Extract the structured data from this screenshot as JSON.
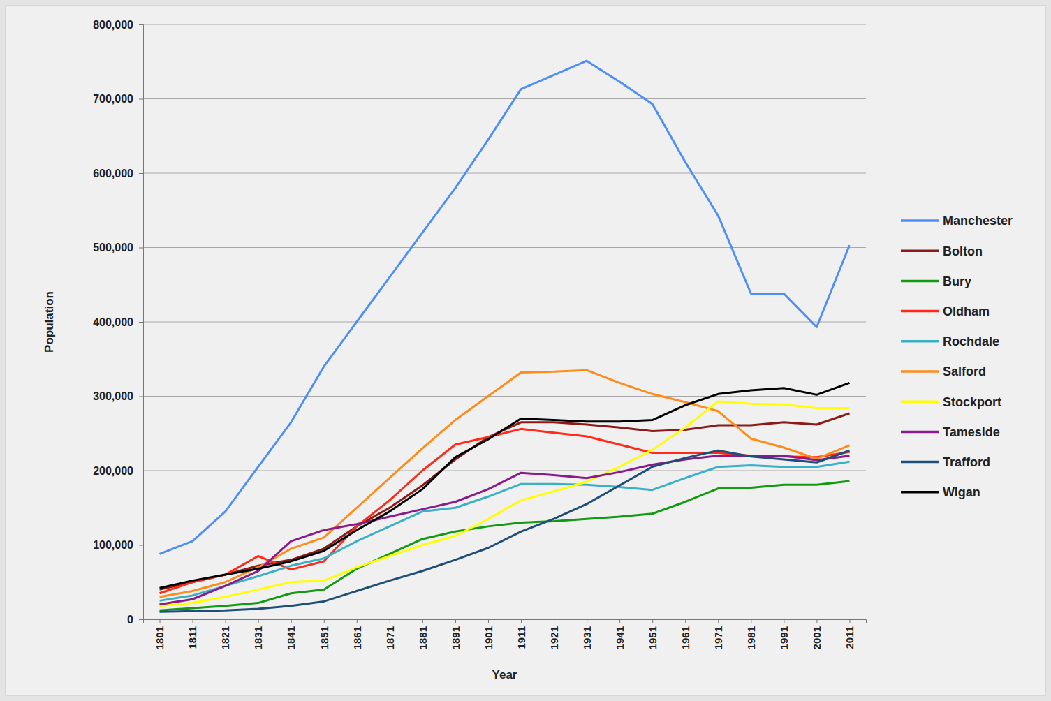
{
  "chart_data": {
    "type": "line",
    "x_label": "Year",
    "y_label": "Population",
    "categories": [
      "1801",
      "1811",
      "1821",
      "1831",
      "1841",
      "1851",
      "1861",
      "1871",
      "1881",
      "1891",
      "1901",
      "1911",
      "1921",
      "1931",
      "1941",
      "1951",
      "1961",
      "1971",
      "1981",
      "1991",
      "2001",
      "2011"
    ],
    "ylim": [
      0,
      800000
    ],
    "yticks": [
      0,
      {
        "value": 100000,
        "label": "100,000"
      },
      {
        "value": 200000,
        "label": "200,000"
      },
      {
        "value": 300000,
        "label": "300,000"
      },
      {
        "value": 400000,
        "label": "400,000"
      },
      {
        "value": 500000,
        "label": "500,000"
      },
      {
        "value": 600000,
        "label": "600,000"
      },
      {
        "value": 700000,
        "label": "700,000"
      },
      {
        "value": 800000,
        "label": "800,000"
      }
    ],
    "grid": true,
    "legend": "right",
    "series": [
      {
        "name": "Manchester",
        "color": "#4f8ef7",
        "values": [
          88000,
          105000,
          145000,
          205000,
          265000,
          340000,
          400000,
          460000,
          520000,
          580000,
          645000,
          713000,
          732000,
          751000,
          723000,
          693000,
          615000,
          543000,
          438000,
          438000,
          393000,
          503000
        ]
      },
      {
        "name": "Bolton",
        "color": "#8b1a1a",
        "values": [
          40000,
          50000,
          60000,
          72000,
          80000,
          95000,
          125000,
          150000,
          180000,
          215000,
          245000,
          265000,
          265000,
          262000,
          258000,
          253000,
          255000,
          261000,
          261000,
          265000,
          262000,
          277000
        ]
      },
      {
        "name": "Bury",
        "color": "#139a13",
        "values": [
          12000,
          15000,
          18000,
          22000,
          35000,
          40000,
          68000,
          88000,
          108000,
          118000,
          125000,
          130000,
          132000,
          135000,
          138000,
          142000,
          158000,
          176000,
          177000,
          181000,
          181000,
          186000
        ]
      },
      {
        "name": "Oldham",
        "color": "#ff2a1a",
        "values": [
          35000,
          50000,
          60000,
          85000,
          67000,
          78000,
          125000,
          160000,
          200000,
          235000,
          245000,
          256000,
          251000,
          246000,
          235000,
          224000,
          224000,
          224000,
          220000,
          219000,
          218000,
          225000
        ]
      },
      {
        "name": "Rochdale",
        "color": "#3ab0c8",
        "values": [
          25000,
          32000,
          45000,
          58000,
          72000,
          82000,
          105000,
          125000,
          145000,
          150000,
          165000,
          182000,
          182000,
          181000,
          178000,
          174000,
          190000,
          205000,
          207000,
          205000,
          205000,
          212000
        ]
      },
      {
        "name": "Salford",
        "color": "#ff8c1a",
        "values": [
          30000,
          38000,
          50000,
          70000,
          95000,
          110000,
          150000,
          190000,
          230000,
          268000,
          300000,
          332000,
          333000,
          335000,
          318000,
          303000,
          292000,
          280000,
          243000,
          231000,
          216000,
          234000
        ]
      },
      {
        "name": "Stockport",
        "color": "#ffff00",
        "values": [
          18000,
          22000,
          30000,
          40000,
          50000,
          52000,
          70000,
          85000,
          100000,
          112000,
          135000,
          160000,
          172000,
          185000,
          205000,
          228000,
          258000,
          293000,
          290000,
          289000,
          284000,
          284000
        ]
      },
      {
        "name": "Tameside",
        "color": "#8b1a8b",
        "values": [
          20000,
          27000,
          45000,
          65000,
          105000,
          120000,
          128000,
          138000,
          148000,
          158000,
          175000,
          197000,
          194000,
          190000,
          198000,
          208000,
          215000,
          220000,
          220000,
          220000,
          214000,
          220000
        ]
      },
      {
        "name": "Trafford",
        "color": "#1f4e79",
        "values": [
          10000,
          11000,
          12000,
          14000,
          18000,
          24000,
          38000,
          52000,
          65000,
          80000,
          96000,
          118000,
          135000,
          155000,
          180000,
          205000,
          217000,
          227000,
          219000,
          215000,
          211000,
          227000
        ]
      },
      {
        "name": "Wigan",
        "color": "#000000",
        "values": [
          42000,
          52000,
          60000,
          68000,
          78000,
          92000,
          120000,
          145000,
          175000,
          218000,
          242000,
          270000,
          268000,
          266000,
          266000,
          268000,
          288000,
          303000,
          308000,
          311000,
          302000,
          318000
        ]
      }
    ]
  }
}
